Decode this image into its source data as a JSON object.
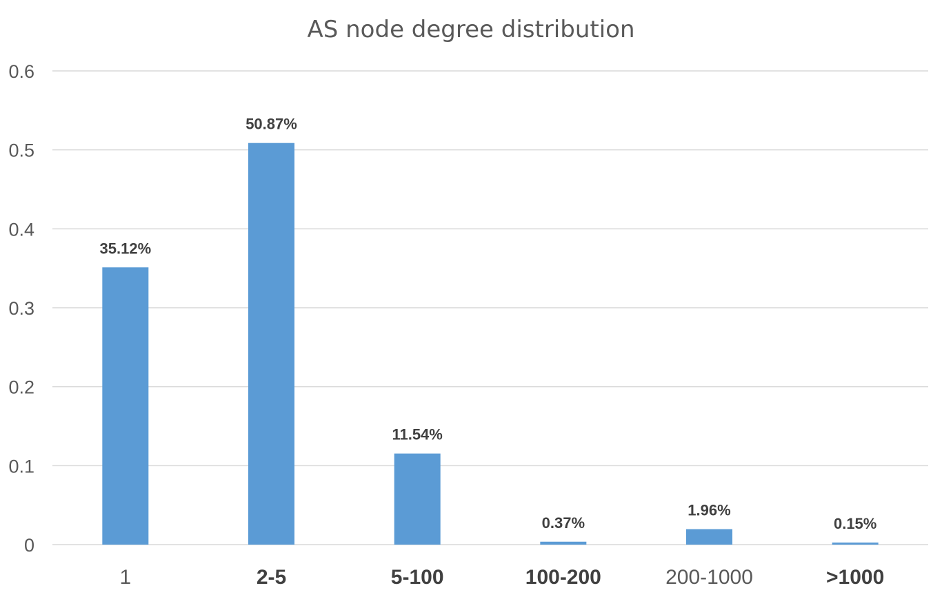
{
  "chart_data": {
    "type": "bar",
    "title": "AS node degree distribution",
    "categories": [
      "1",
      "2-5",
      "5-100",
      "100-200",
      "200-1000",
      ">1000"
    ],
    "values": [
      0.3512,
      0.5087,
      0.1154,
      0.0037,
      0.0196,
      0.0015
    ],
    "data_labels": [
      "35.12%",
      "50.87%",
      "11.54%",
      "0.37%",
      "1.96%",
      "0.15%"
    ],
    "y_ticks": [
      "0",
      "0.1",
      "0.2",
      "0.3",
      "0.4",
      "0.5",
      "0.6"
    ],
    "ylim": [
      0,
      0.6
    ],
    "grid": true,
    "legend": "none",
    "bar_color": "#5b9bd5"
  }
}
